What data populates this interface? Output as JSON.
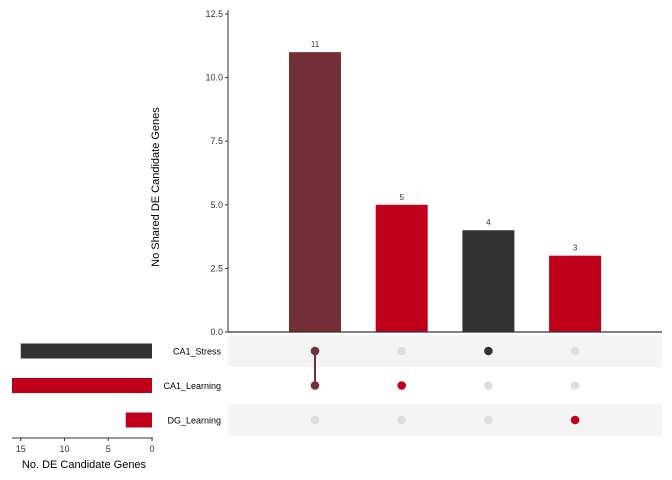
{
  "chart_data": {
    "type": "bar",
    "chart_kind": "upset",
    "intersection_axis": {
      "ylabel": "No Shared DE Candidate Genes",
      "ylim": [
        0,
        12.5
      ],
      "ticks": [
        "0.0",
        "2.5",
        "5.0",
        "7.5",
        "10.0",
        "12.5"
      ]
    },
    "set_size_axis": {
      "xlabel": "No. DE Candidate Genes",
      "ticks": [
        "15",
        "10",
        "5",
        "0"
      ],
      "xlim_reversed": [
        0,
        16
      ]
    },
    "sets": [
      {
        "name": "CA1_Stress",
        "size": 15,
        "color": "#333333"
      },
      {
        "name": "CA1_Learning",
        "size": 16,
        "color": "#c0001b"
      },
      {
        "name": "DG_Learning",
        "size": 3,
        "color": "#c0001b"
      }
    ],
    "intersections": [
      {
        "label": "11",
        "value": 11,
        "members": [
          "CA1_Stress",
          "CA1_Learning"
        ],
        "color": "#722f37"
      },
      {
        "label": "5",
        "value": 5,
        "members": [
          "CA1_Learning"
        ],
        "color": "#c0001b"
      },
      {
        "label": "4",
        "value": 4,
        "members": [
          "CA1_Stress"
        ],
        "color": "#333333"
      },
      {
        "label": "3",
        "value": 3,
        "members": [
          "DG_Learning"
        ],
        "color": "#c0001b"
      }
    ],
    "colors": {
      "inactive_dot": "#dddddd",
      "stripe": "#f4f4f4",
      "axis": "#333333"
    },
    "grid": false
  }
}
